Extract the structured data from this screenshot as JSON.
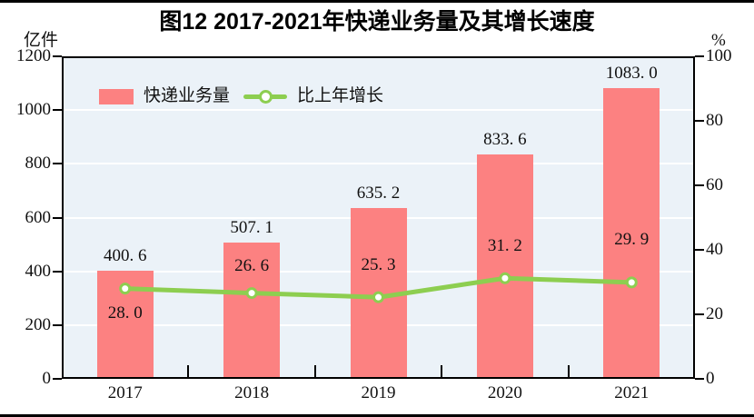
{
  "title": "图12  2017-2021年快递业务量及其增长速度",
  "left_axis": {
    "unit": "亿件",
    "ticks": [
      0,
      200,
      400,
      600,
      800,
      1000,
      1200
    ],
    "max": 1200
  },
  "right_axis": {
    "unit": "%",
    "ticks": [
      0,
      20,
      40,
      60,
      80,
      100
    ],
    "max": 100
  },
  "colors": {
    "bar": "#FC8181",
    "line": "#8DCE50",
    "marker_fill": "#FFFFFF",
    "plot_background": "#EBF2F8",
    "gridline": "#FFFFFF",
    "axis": "#000000",
    "text": "#111111"
  },
  "chart_data": {
    "type": "bar",
    "categories": [
      "2017",
      "2018",
      "2019",
      "2020",
      "2021"
    ],
    "series": [
      {
        "name": "快递业务量",
        "type": "bar",
        "axis": "left",
        "values": [
          400.6,
          507.1,
          635.2,
          833.6,
          1083.0
        ],
        "labels": [
          "400. 6",
          "507. 1",
          "635. 2",
          "833. 6",
          "1083. 0"
        ]
      },
      {
        "name": "比上年增长",
        "type": "line",
        "axis": "right",
        "values": [
          28.0,
          26.6,
          25.3,
          31.2,
          29.9
        ],
        "labels": [
          "28. 0",
          "26. 6",
          "25. 3",
          "31. 2",
          "29. 9"
        ]
      }
    ],
    "title": "图12  2017-2021年快递业务量及其增长速度",
    "xlabel": "",
    "ylabel_left": "亿件",
    "ylabel_right": "%",
    "ylim_left": [
      0,
      1200
    ],
    "ylim_right": [
      0,
      100
    ],
    "grid": "horizontal-white",
    "legend_position": "top-left-inside",
    "layout": {
      "growth_label_offsets": [
        17,
        -40,
        -45,
        -45,
        -57
      ]
    }
  }
}
